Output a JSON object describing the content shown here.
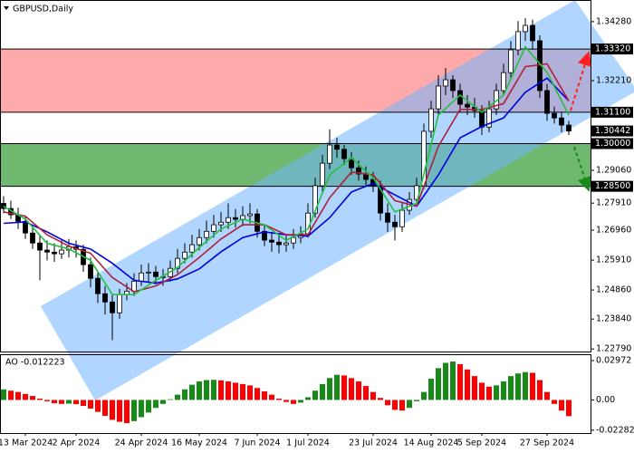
{
  "chart_data": {
    "type": "candlestick",
    "title": "GBPUSD,Daily",
    "categories": [
      null,
      null,
      null,
      "13 Mar 2024",
      null,
      null,
      null,
      null,
      null,
      null,
      "2 Apr 2024",
      null,
      null,
      null,
      null,
      null,
      null,
      null,
      null,
      "24 Apr 2024",
      null,
      null,
      null,
      null,
      null,
      null,
      null,
      "16 May 2024",
      null,
      null,
      null,
      null,
      null,
      null,
      null,
      "7 Jun 2024",
      null,
      null,
      null,
      null,
      null,
      null,
      "1 Jul 2024",
      null,
      null,
      null,
      null,
      null,
      null,
      null,
      null,
      "23 Jul 2024",
      null,
      null,
      null,
      null,
      null,
      null,
      null,
      "14 Aug 2024",
      null,
      null,
      null,
      null,
      null,
      null,
      "5 Sep 2024",
      null,
      null,
      null,
      null,
      null,
      null,
      null,
      null,
      "27 Sep 2024",
      null,
      null,
      null
    ],
    "ohlc": [
      [
        1.279,
        1.2815,
        1.2755,
        1.2772
      ],
      [
        1.2772,
        1.28,
        1.2735,
        1.275
      ],
      [
        1.275,
        1.2775,
        1.27,
        1.2727
      ],
      [
        1.2727,
        1.2745,
        1.2665,
        1.2686
      ],
      [
        1.2686,
        1.271,
        1.263,
        1.2651
      ],
      [
        1.2651,
        1.268,
        1.252,
        1.2626
      ],
      [
        1.2626,
        1.266,
        1.259,
        1.2619
      ],
      [
        1.2619,
        1.265,
        1.2585,
        1.2613
      ],
      [
        1.2613,
        1.266,
        1.2595,
        1.2626
      ],
      [
        1.2626,
        1.2665,
        1.26,
        1.2638
      ],
      [
        1.2638,
        1.266,
        1.26,
        1.2629
      ],
      [
        1.2629,
        1.2645,
        1.255,
        1.2575
      ],
      [
        1.2575,
        1.26,
        1.2495,
        1.2527
      ],
      [
        1.2527,
        1.255,
        1.244,
        1.2473
      ],
      [
        1.2473,
        1.25,
        1.24,
        1.2444
      ],
      [
        1.2444,
        1.247,
        1.231,
        1.2406
      ],
      [
        1.2406,
        1.249,
        1.2385,
        1.247
      ],
      [
        1.247,
        1.251,
        1.245,
        1.2482
      ],
      [
        1.2482,
        1.2545,
        1.2465,
        1.2517
      ],
      [
        1.2517,
        1.2575,
        1.25,
        1.2546
      ],
      [
        1.2546,
        1.258,
        1.2515,
        1.2549
      ],
      [
        1.2549,
        1.257,
        1.2505,
        1.2533
      ],
      [
        1.2533,
        1.256,
        1.25,
        1.2533
      ],
      [
        1.2533,
        1.259,
        1.2515,
        1.2562
      ],
      [
        1.2562,
        1.263,
        1.2545,
        1.2597
      ],
      [
        1.2597,
        1.265,
        1.258,
        1.2619
      ],
      [
        1.2619,
        1.268,
        1.26,
        1.2645
      ],
      [
        1.2645,
        1.27,
        1.2625,
        1.267
      ],
      [
        1.267,
        1.273,
        1.265,
        1.2692
      ],
      [
        1.2692,
        1.275,
        1.267,
        1.2715
      ],
      [
        1.2715,
        1.276,
        1.269,
        1.2724
      ],
      [
        1.2724,
        1.279,
        1.27,
        1.274
      ],
      [
        1.274,
        1.277,
        1.2705,
        1.2734
      ],
      [
        1.2734,
        1.278,
        1.271,
        1.2747
      ],
      [
        1.2747,
        1.279,
        1.272,
        1.2753
      ],
      [
        1.2753,
        1.277,
        1.267,
        1.2692
      ],
      [
        1.2692,
        1.2715,
        1.264,
        1.2661
      ],
      [
        1.2661,
        1.269,
        1.262,
        1.2654
      ],
      [
        1.2654,
        1.268,
        1.2615,
        1.2645
      ],
      [
        1.2645,
        1.268,
        1.262,
        1.2651
      ],
      [
        1.2651,
        1.27,
        1.263,
        1.267
      ],
      [
        1.267,
        1.271,
        1.265,
        1.2683
      ],
      [
        1.2683,
        1.279,
        1.267,
        1.2756
      ],
      [
        1.2756,
        1.288,
        1.274,
        1.2852
      ],
      [
        1.2852,
        1.296,
        1.283,
        1.2931
      ],
      [
        1.2931,
        1.305,
        1.291,
        1.2995
      ],
      [
        1.2995,
        1.302,
        1.295,
        1.298
      ],
      [
        1.298,
        1.2995,
        1.2925,
        1.2947
      ],
      [
        1.2947,
        1.297,
        1.289,
        1.2915
      ],
      [
        1.2915,
        1.294,
        1.287,
        1.2893
      ],
      [
        1.2893,
        1.292,
        1.285,
        1.2874
      ],
      [
        1.2874,
        1.29,
        1.283,
        1.2852
      ],
      [
        1.2852,
        1.287,
        1.273,
        1.2756
      ],
      [
        1.2756,
        1.279,
        1.269,
        1.2724
      ],
      [
        1.2724,
        1.275,
        1.266,
        1.2708
      ],
      [
        1.2708,
        1.279,
        1.269,
        1.2766
      ],
      [
        1.2766,
        1.283,
        1.275,
        1.2804
      ],
      [
        1.2804,
        1.288,
        1.279,
        1.2852
      ],
      [
        1.2852,
        1.307,
        1.284,
        1.3043
      ],
      [
        1.3043,
        1.315,
        1.302,
        1.3122
      ],
      [
        1.3122,
        1.324,
        1.31,
        1.3202
      ],
      [
        1.3202,
        1.3265,
        1.317,
        1.3224
      ],
      [
        1.3224,
        1.324,
        1.316,
        1.3186
      ],
      [
        1.3186,
        1.321,
        1.311,
        1.3138
      ],
      [
        1.3138,
        1.317,
        1.31,
        1.3128
      ],
      [
        1.3128,
        1.316,
        1.309,
        1.3116
      ],
      [
        1.3116,
        1.3135,
        1.303,
        1.3058
      ],
      [
        1.3058,
        1.315,
        1.304,
        1.3122
      ],
      [
        1.3122,
        1.321,
        1.31,
        1.3186
      ],
      [
        1.3186,
        1.328,
        1.317,
        1.3249
      ],
      [
        1.3249,
        1.336,
        1.323,
        1.3329
      ],
      [
        1.3329,
        1.343,
        1.331,
        1.3393
      ],
      [
        1.3393,
        1.344,
        1.336,
        1.3415
      ],
      [
        1.3415,
        1.3435,
        1.333,
        1.3361
      ],
      [
        1.3361,
        1.338,
        1.316,
        1.3186
      ],
      [
        1.3186,
        1.321,
        1.308,
        1.3106
      ],
      [
        1.3106,
        1.313,
        1.307,
        1.309
      ],
      [
        1.309,
        1.311,
        1.304,
        1.3065
      ],
      [
        1.3065,
        1.308,
        1.303,
        1.30442
      ]
    ],
    "series": [
      {
        "color": "#0000dd",
        "x": [
          0,
          3,
          6,
          9,
          12,
          15,
          18,
          21,
          24,
          27,
          30,
          33,
          36,
          39,
          42,
          45,
          48,
          51,
          54,
          57,
          60,
          63,
          66,
          69,
          72,
          75,
          78
        ],
        "values": [
          1.272,
          1.2725,
          1.269,
          1.265,
          1.263,
          1.258,
          1.252,
          1.251,
          1.2525,
          1.256,
          1.262,
          1.267,
          1.269,
          1.268,
          1.2675,
          1.274,
          1.283,
          1.286,
          1.282,
          1.278,
          1.289,
          1.302,
          1.306,
          1.309,
          1.318,
          1.323,
          1.315
        ]
      },
      {
        "color": "#b0203c",
        "x": [
          0,
          3,
          6,
          9,
          12,
          15,
          18,
          21,
          24,
          27,
          30,
          33,
          36,
          39,
          42,
          45,
          48,
          51,
          54,
          57,
          60,
          63,
          66,
          69,
          72,
          75,
          78
        ],
        "values": [
          1.276,
          1.2745,
          1.268,
          1.264,
          1.2615,
          1.253,
          1.248,
          1.25,
          1.254,
          1.26,
          1.2665,
          1.2715,
          1.2715,
          1.268,
          1.268,
          1.281,
          1.29,
          1.289,
          1.28,
          1.278,
          1.299,
          1.312,
          1.312,
          1.314,
          1.327,
          1.328,
          1.315
        ]
      },
      {
        "color": "#22c040",
        "x": [
          0,
          3,
          6,
          9,
          12,
          15,
          18,
          21,
          24,
          27,
          30,
          33,
          36,
          39,
          42,
          45,
          48,
          51,
          54,
          57,
          60,
          63,
          66,
          69,
          72,
          75,
          78
        ],
        "values": [
          1.278,
          1.2735,
          1.265,
          1.263,
          1.259,
          1.247,
          1.247,
          1.252,
          1.2565,
          1.2635,
          1.27,
          1.2735,
          1.2715,
          1.266,
          1.27,
          1.289,
          1.295,
          1.288,
          1.276,
          1.279,
          1.31,
          1.317,
          1.311,
          1.317,
          1.334,
          1.325,
          1.31
        ]
      }
    ],
    "ylim": [
      1.227,
      1.3504
    ],
    "yticks": [
      {
        "value": 1.3428,
        "label": "1.34280"
      },
      {
        "value": 1.3221,
        "label": "1.32210"
      },
      {
        "value": 1.2906,
        "label": "1.29060"
      },
      {
        "value": 1.2791,
        "label": "1.27910"
      },
      {
        "value": 1.2696,
        "label": "1.26960"
      },
      {
        "value": 1.2591,
        "label": "1.25910"
      },
      {
        "value": 1.2486,
        "label": "1.24860"
      },
      {
        "value": 1.2384,
        "label": "1.23840"
      },
      {
        "value": 1.2279,
        "label": "1.22790"
      }
    ],
    "zones": [
      {
        "top": {
          "value": 1.3332,
          "label": "1.33320"
        },
        "bottom": {
          "value": 1.311,
          "label": "1.31100"
        },
        "color": "#ffaaaa"
      },
      {
        "top": {
          "value": 1.3,
          "label": "1.30000"
        },
        "bottom": {
          "value": 1.285,
          "label": "1.28500"
        },
        "color": "#6fb86f"
      }
    ],
    "last_price": {
      "value": 1.30442,
      "label": "1.30442"
    },
    "up_color": "#ffffff",
    "down_color": "#000000",
    "ao": {
      "type": "bar",
      "title": "AO -0.012223",
      "values": [
        0.008,
        0.007,
        0.006,
        0.0045,
        0.003,
        0.001,
        -0.001,
        -0.0025,
        -0.003,
        -0.0028,
        -0.0032,
        -0.0045,
        -0.0065,
        -0.009,
        -0.012,
        -0.015,
        -0.0165,
        -0.0175,
        -0.016,
        -0.013,
        -0.0095,
        -0.006,
        -0.003,
        0.0005,
        0.004,
        0.008,
        0.0115,
        0.014,
        0.015,
        0.0152,
        0.0148,
        0.014,
        0.013,
        0.012,
        0.011,
        0.009,
        0.0065,
        0.004,
        0.001,
        -0.0015,
        -0.003,
        -0.002,
        0.002,
        0.007,
        0.012,
        0.0165,
        0.019,
        0.0185,
        0.0165,
        0.014,
        0.0105,
        0.006,
        0.0015,
        -0.004,
        -0.0075,
        -0.008,
        -0.006,
        -0.001,
        0.006,
        0.016,
        0.024,
        0.028,
        0.029,
        0.027,
        0.023,
        0.018,
        0.013,
        0.01,
        0.011,
        0.014,
        0.018,
        0.02,
        0.021,
        0.0205,
        0.015,
        0.006,
        -0.003,
        -0.008,
        -0.012223
      ],
      "ylim": [
        -0.025,
        0.0345
      ],
      "yticks": [
        0.02972,
        {
          "value": 0,
          "label": "0.00"
        },
        -0.022821
      ],
      "up_color": "#178a17",
      "down_color": "#ff0000"
    }
  }
}
